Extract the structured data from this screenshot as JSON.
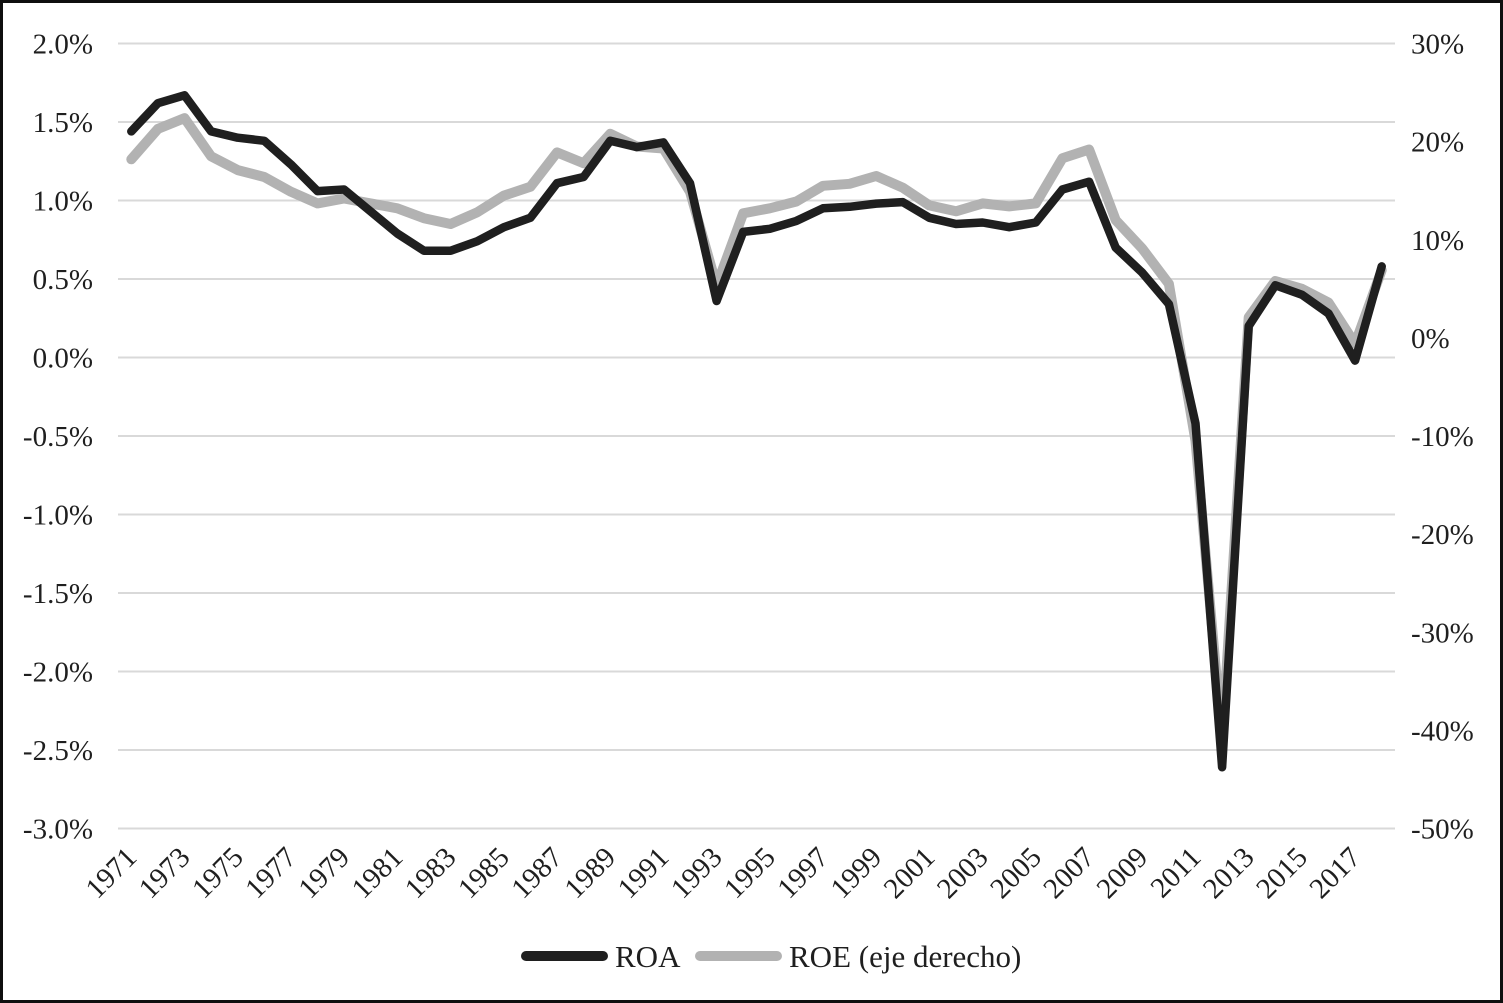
{
  "chart_data": {
    "type": "line",
    "title": "",
    "x": [
      1971,
      1972,
      1973,
      1974,
      1975,
      1976,
      1977,
      1978,
      1979,
      1980,
      1981,
      1982,
      1983,
      1984,
      1985,
      1986,
      1987,
      1988,
      1989,
      1990,
      1991,
      1992,
      1993,
      1994,
      1995,
      1996,
      1997,
      1998,
      1999,
      2000,
      2001,
      2002,
      2003,
      2004,
      2005,
      2006,
      2007,
      2008,
      2009,
      2010,
      2011,
      2012,
      2013,
      2014,
      2015,
      2016,
      2017,
      2018
    ],
    "series": [
      {
        "name": "ROA",
        "axis": "left",
        "color": "#1f1f1f",
        "values": [
          1.44,
          1.62,
          1.67,
          1.44,
          1.4,
          1.38,
          1.23,
          1.06,
          1.07,
          0.93,
          0.79,
          0.68,
          0.68,
          0.74,
          0.83,
          0.89,
          1.11,
          1.15,
          1.38,
          1.34,
          1.37,
          1.11,
          0.36,
          0.8,
          0.82,
          0.87,
          0.95,
          0.96,
          0.98,
          0.99,
          0.89,
          0.85,
          0.86,
          0.83,
          0.86,
          1.07,
          1.12,
          0.7,
          0.54,
          0.34,
          -0.42,
          -2.61,
          0.2,
          0.46,
          0.4,
          0.28,
          -0.02,
          0.58
        ]
      },
      {
        "name": "ROE (eje derecho)",
        "axis": "right",
        "color": "#b2b2b2",
        "values": [
          18.2,
          21.3,
          22.4,
          18.5,
          17.1,
          16.4,
          14.9,
          13.7,
          14.2,
          13.7,
          13.2,
          12.2,
          11.6,
          12.8,
          14.5,
          15.4,
          18.9,
          17.8,
          20.8,
          19.5,
          19.3,
          14.9,
          5.3,
          12.7,
          13.2,
          13.9,
          15.5,
          15.7,
          16.5,
          15.3,
          13.5,
          12.9,
          13.7,
          13.4,
          13.7,
          18.3,
          19.2,
          12.0,
          9.1,
          5.5,
          -10.5,
          -41.0,
          2.1,
          5.8,
          5.0,
          3.6,
          -0.6,
          6.9
        ]
      }
    ],
    "left_axis": {
      "unit": "%",
      "min": -3.0,
      "max": 2.0,
      "tick_step": 0.5,
      "tick_labels": [
        "2.0%",
        "1.5%",
        "1.0%",
        "0.5%",
        "0.0%",
        "-0.5%",
        "-1.0%",
        "-1.5%",
        "-2.0%",
        "-2.5%",
        "-3.0%"
      ],
      "tick_values": [
        2.0,
        1.5,
        1.0,
        0.5,
        0.0,
        -0.5,
        -1.0,
        -1.5,
        -2.0,
        -2.5,
        -3.0
      ]
    },
    "right_axis": {
      "unit": "%",
      "min": -50,
      "max": 30,
      "tick_step": 10,
      "tick_labels": [
        "30%",
        "20%",
        "10%",
        "0%",
        "-10%",
        "-20%",
        "-30%",
        "-40%",
        "-50%"
      ],
      "tick_values": [
        30,
        20,
        10,
        0,
        -10,
        -20,
        -30,
        -40,
        -50
      ]
    },
    "x_tick_labels": [
      "1971",
      "1973",
      "1975",
      "1977",
      "1979",
      "1981",
      "1983",
      "1985",
      "1987",
      "1989",
      "1991",
      "1993",
      "1995",
      "1997",
      "1999",
      "2001",
      "2003",
      "2005",
      "2007",
      "2009",
      "2011",
      "2013",
      "2015",
      "2017"
    ],
    "grid": true,
    "legend_position": "bottom"
  },
  "legend": {
    "items": [
      {
        "label": "ROA",
        "color": "#1f1f1f"
      },
      {
        "label": "ROE (eje derecho)",
        "color": "#b2b2b2"
      }
    ]
  },
  "colors": {
    "background": "#ffffff",
    "grid": "#d9d9d9",
    "text": "#1f1f1f",
    "border": "#0f0f0f"
  }
}
